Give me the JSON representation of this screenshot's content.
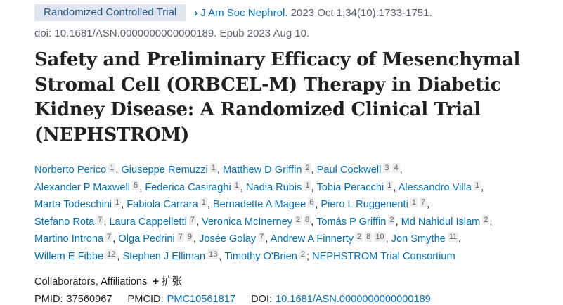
{
  "article_type": "Randomized Controlled Trial",
  "journal": "J Am Soc Nephrol.",
  "citation": "2023 Oct 1;34(10):1733-1751.",
  "doi_line": "doi: 10.1681/ASN.0000000000000189. Epub 2023 Aug 10.",
  "title": "Safety and Preliminary Efficacy of Mesenchymal Stromal Cell (ORBCEL-M) Therapy in Diabetic Kidney Disease: A Randomized Clinical Trial (NEPHSTROM)",
  "authors": [
    {
      "name": "Norberto Perico",
      "aff": [
        "1"
      ]
    },
    {
      "name": "Giuseppe Remuzzi",
      "aff": [
        "1"
      ]
    },
    {
      "name": "Matthew D Griffin",
      "aff": [
        "2"
      ]
    },
    {
      "name": "Paul Cockwell",
      "aff": [
        "3",
        "4"
      ]
    },
    {
      "name": "Alexander P Maxwell",
      "aff": [
        "5"
      ]
    },
    {
      "name": "Federica Casiraghi",
      "aff": [
        "1"
      ]
    },
    {
      "name": "Nadia Rubis",
      "aff": [
        "1"
      ]
    },
    {
      "name": "Tobia Peracchi",
      "aff": [
        "1"
      ]
    },
    {
      "name": "Alessandro Villa",
      "aff": [
        "1"
      ]
    },
    {
      "name": "Marta Todeschini",
      "aff": [
        "1"
      ]
    },
    {
      "name": "Fabiola Carrara",
      "aff": [
        "1"
      ]
    },
    {
      "name": "Bernadette A Magee",
      "aff": [
        "6"
      ]
    },
    {
      "name": "Piero L Ruggenenti",
      "aff": [
        "1",
        "7"
      ]
    },
    {
      "name": "Stefano Rota",
      "aff": [
        "7"
      ]
    },
    {
      "name": "Laura Cappelletti",
      "aff": [
        "7"
      ]
    },
    {
      "name": "Veronica McInerney",
      "aff": [
        "2",
        "8"
      ]
    },
    {
      "name": "Tomás P Griffin",
      "aff": [
        "2"
      ]
    },
    {
      "name": "Md Nahidul Islam",
      "aff": [
        "2"
      ]
    },
    {
      "name": "Martino Introna",
      "aff": [
        "7"
      ]
    },
    {
      "name": "Olga Pedrini",
      "aff": [
        "7",
        "9"
      ]
    },
    {
      "name": "Josée Golay",
      "aff": [
        "7"
      ]
    },
    {
      "name": "Andrew A Finnerty",
      "aff": [
        "2",
        "8",
        "10"
      ]
    },
    {
      "name": "Jon Smythe",
      "aff": [
        "11"
      ]
    },
    {
      "name": "Willem E Fibbe",
      "aff": [
        "12"
      ]
    },
    {
      "name": "Stephen J Elliman",
      "aff": [
        "13"
      ]
    },
    {
      "name": "Timothy O'Brien",
      "aff": [
        "2"
      ]
    }
  ],
  "consortium": "NEPHSTROM Trial Consortium",
  "collab_label": "Collaborators, Affiliations",
  "expand_label": "扩张",
  "pmid_label": "PMID:",
  "pmid": "37560967",
  "pmcid_label": "PMCID:",
  "pmcid": "PMC10561817",
  "doi_label": "DOI:",
  "doi": "10.1681/ASN.0000000000000189"
}
